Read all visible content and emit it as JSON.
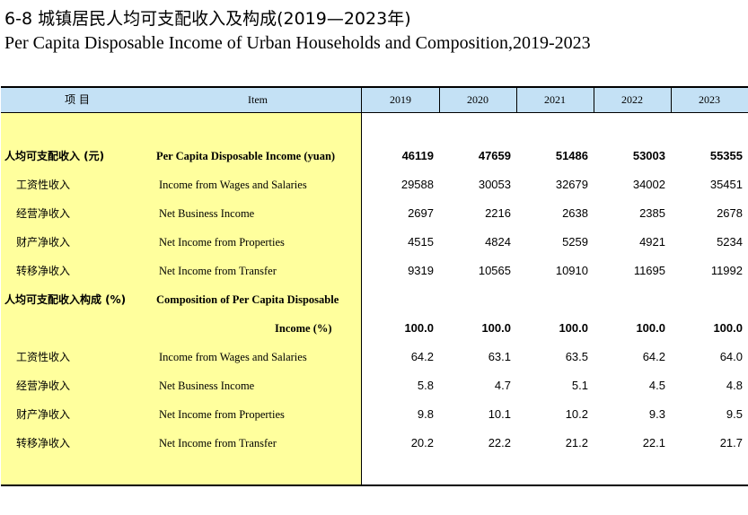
{
  "title_cn": "6-8  城镇居民人均可支配收入及构成(2019—2023年)",
  "title_en": "Per Capita Disposable Income of Urban Households and Composition,2019-2023",
  "header": {
    "item_cn": "项  目",
    "item_en": "Item",
    "years": [
      "2019",
      "2020",
      "2021",
      "2022",
      "2023"
    ]
  },
  "rows": [
    {
      "cn": "人均可支配收入 (元)",
      "en": "Per Capita Disposable Income (yuan)",
      "values": [
        "46119",
        "47659",
        "51486",
        "53003",
        "55355"
      ]
    },
    {
      "cn": "工资性收入",
      "en": "Income from Wages and Salaries",
      "values": [
        "29588",
        "30053",
        "32679",
        "34002",
        "35451"
      ]
    },
    {
      "cn": "经营净收入",
      "en": "Net Business Income",
      "values": [
        "2697",
        "2216",
        "2638",
        "2385",
        "2678"
      ]
    },
    {
      "cn": "财产净收入",
      "en": "Net Income from Properties",
      "values": [
        "4515",
        "4824",
        "5259",
        "4921",
        "5234"
      ]
    },
    {
      "cn": "转移净收入",
      "en": "Net Income from Transfer",
      "values": [
        "9319",
        "10565",
        "10910",
        "11695",
        "11992"
      ]
    },
    {
      "cn": "人均可支配收入构成 (%)",
      "en": "Composition of Per Capita Disposable",
      "values": [
        "",
        "",
        "",
        "",
        ""
      ]
    },
    {
      "cn": "",
      "en": "Income (%)",
      "values": [
        "100.0",
        "100.0",
        "100.0",
        "100.0",
        "100.0"
      ]
    },
    {
      "cn": "工资性收入",
      "en": "Income from Wages and Salaries",
      "values": [
        "64.2",
        "63.1",
        "63.5",
        "64.2",
        "64.0"
      ]
    },
    {
      "cn": "经营净收入",
      "en": "Net Business Income",
      "values": [
        "5.8",
        "4.7",
        "5.1",
        "4.5",
        "4.8"
      ]
    },
    {
      "cn": "财产净收入",
      "en": "Net Income from Properties",
      "values": [
        "9.8",
        "10.1",
        "10.2",
        "9.3",
        "9.5"
      ]
    },
    {
      "cn": "转移净收入",
      "en": "Net Income from Transfer",
      "values": [
        "20.2",
        "22.2",
        "21.2",
        "22.1",
        "21.7"
      ]
    }
  ]
}
